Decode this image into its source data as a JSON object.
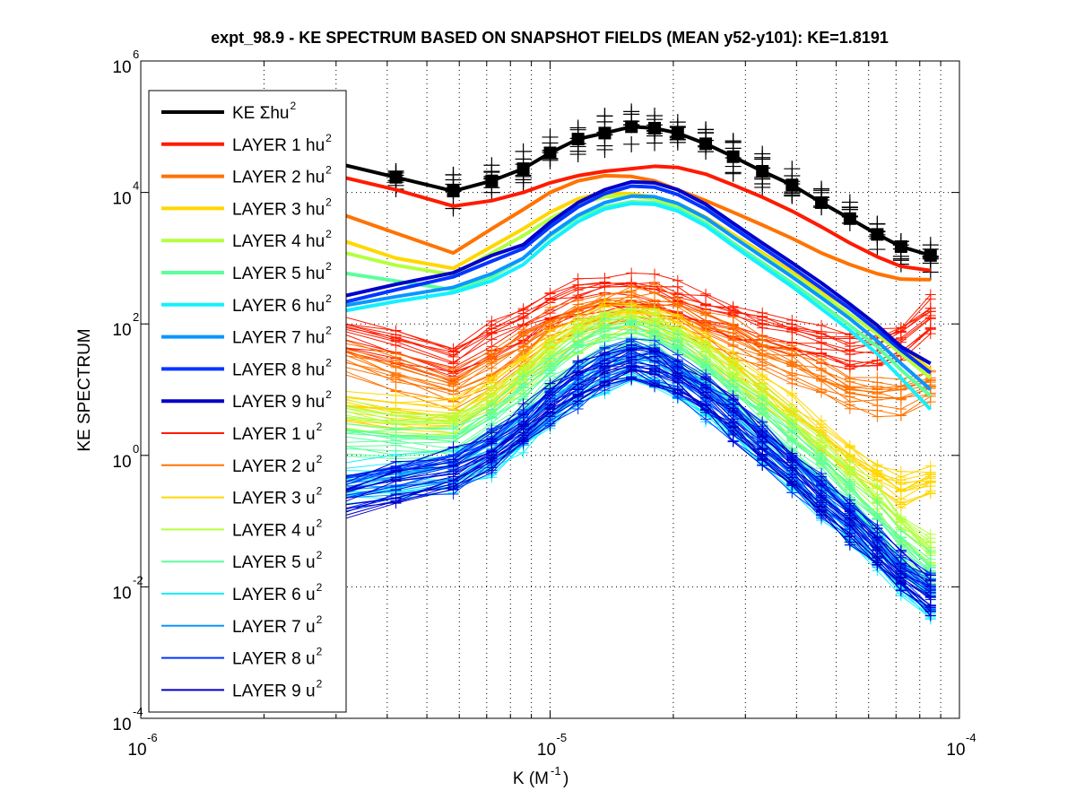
{
  "chart_data": {
    "type": "line",
    "title": "expt_98.9 - KE SPECTRUM BASED ON SNAPSHOT FIELDS (MEAN y52-y101): KE=1.8191",
    "xlabel": "K  (M",
    "xlabel_sup": "-1",
    "xlabel_close": ")",
    "ylabel": "KE SPECTRUM",
    "xscale": "log",
    "yscale": "log",
    "xlim": [
      1e-06,
      0.0001
    ],
    "ylim": [
      0.0001,
      1000000.0
    ],
    "grid": true,
    "legend_position": "top-left",
    "x_ticks": [
      {
        "base": "10",
        "exp": "-6",
        "value": 1e-06
      },
      {
        "base": "10",
        "exp": "-5",
        "value": 1e-05
      },
      {
        "base": "10",
        "exp": "-4",
        "value": 0.0001
      }
    ],
    "y_ticks": [
      {
        "base": "10",
        "exp": "-4",
        "value": 0.0001
      },
      {
        "base": "10",
        "exp": "-2",
        "value": 0.01
      },
      {
        "base": "10",
        "exp": "0",
        "value": 1
      },
      {
        "base": "10",
        "exp": "2",
        "value": 100
      },
      {
        "base": "10",
        "exp": "4",
        "value": 10000
      },
      {
        "base": "10",
        "exp": "6",
        "value": 1000000
      }
    ],
    "legend": [
      {
        "label": "KE Σhu",
        "sup": "2",
        "color": "#000000",
        "thick": true
      },
      {
        "label": "LAYER 1 hu",
        "sup": "2",
        "color": "#ff1a00",
        "thick": true
      },
      {
        "label": "LAYER 2 hu",
        "sup": "2",
        "color": "#ff7300",
        "thick": true
      },
      {
        "label": "LAYER 3 hu",
        "sup": "2",
        "color": "#ffd700",
        "thick": true
      },
      {
        "label": "LAYER 4 hu",
        "sup": "2",
        "color": "#b4ff40",
        "thick": true
      },
      {
        "label": "LAYER 5 hu",
        "sup": "2",
        "color": "#5cff9c",
        "thick": true
      },
      {
        "label": "LAYER 6 hu",
        "sup": "2",
        "color": "#14f0ff",
        "thick": true
      },
      {
        "label": "LAYER 7 hu",
        "sup": "2",
        "color": "#0a96ff",
        "thick": true
      },
      {
        "label": "LAYER 8 hu",
        "sup": "2",
        "color": "#0036ff",
        "thick": true
      },
      {
        "label": "LAYER 9 hu",
        "sup": "2",
        "color": "#0000c8",
        "thick": true
      },
      {
        "label": "LAYER 1 u",
        "sup": "2",
        "color": "#ff1a00",
        "thick": false
      },
      {
        "label": "LAYER 2 u",
        "sup": "2",
        "color": "#ff7300",
        "thick": false
      },
      {
        "label": "LAYER 3 u",
        "sup": "2",
        "color": "#ffd700",
        "thick": false
      },
      {
        "label": "LAYER 4 u",
        "sup": "2",
        "color": "#b4ff40",
        "thick": false
      },
      {
        "label": "LAYER 5 u",
        "sup": "2",
        "color": "#5cff9c",
        "thick": false
      },
      {
        "label": "LAYER 6 u",
        "sup": "2",
        "color": "#14f0ff",
        "thick": false
      },
      {
        "label": "LAYER 7 u",
        "sup": "2",
        "color": "#0a96ff",
        "thick": false
      },
      {
        "label": "LAYER 8 u",
        "sup": "2",
        "color": "#0036ff",
        "thick": false
      },
      {
        "label": "LAYER 9 u",
        "sup": "2",
        "color": "#0000c8",
        "thick": false
      }
    ],
    "x": [
      3e-06,
      4.2e-06,
      5.8e-06,
      7.2e-06,
      8.6e-06,
      1e-05,
      1.17e-05,
      1.36e-05,
      1.58e-05,
      1.8e-05,
      2.05e-05,
      2.4e-05,
      2.8e-05,
      3.3e-05,
      3.9e-05,
      4.6e-05,
      5.4e-05,
      6.3e-05,
      7.2e-05,
      8.5e-05
    ],
    "series": [
      {
        "name": "KE Σhu2",
        "color": "#000000",
        "width": 4,
        "markers": "+",
        "values": [
          28000,
          17000,
          10500,
          15000,
          23000,
          40000,
          65000,
          80000,
          100000,
          95000,
          80000,
          55000,
          35000,
          21000,
          13000,
          7000,
          4000,
          2300,
          1500,
          1100
        ]
      },
      {
        "name": "LAYER 1 hu2",
        "color": "#ff1a00",
        "width": 4,
        "values": [
          18000,
          11000,
          6200,
          7500,
          10000,
          14000,
          18000,
          21000,
          23000,
          25000,
          24000,
          19000,
          13000,
          8500,
          5200,
          3000,
          1700,
          1050,
          750,
          650
        ]
      },
      {
        "name": "LAYER 2 hu2",
        "color": "#ff7300",
        "width": 4,
        "values": [
          5000,
          2400,
          1200,
          2800,
          5500,
          10000,
          15000,
          18000,
          17500,
          15000,
          11000,
          7500,
          5000,
          3200,
          2000,
          1200,
          800,
          580,
          480,
          470
        ]
      },
      {
        "name": "LAYER 3 hu2",
        "color": "#ffd700",
        "width": 4,
        "values": [
          2000,
          1000,
          700,
          1500,
          2800,
          5000,
          8000,
          10000,
          9500,
          8500,
          6800,
          4200,
          2300,
          1200,
          620,
          320,
          170,
          90,
          45,
          20
        ]
      },
      {
        "name": "LAYER 4 hu2",
        "color": "#b4ff40",
        "width": 4,
        "values": [
          1300,
          780,
          560,
          1200,
          2200,
          4000,
          6600,
          8600,
          8800,
          8000,
          6400,
          4000,
          2150,
          1100,
          560,
          280,
          140,
          70,
          35,
          15
        ]
      },
      {
        "name": "LAYER 5 hu2",
        "color": "#5cff9c",
        "width": 4,
        "values": [
          620,
          450,
          330,
          520,
          1000,
          2200,
          4200,
          6000,
          7200,
          7000,
          5600,
          3400,
          1700,
          850,
          420,
          200,
          95,
          45,
          20,
          8
        ]
      },
      {
        "name": "LAYER 6 hu2",
        "color": "#14f0ff",
        "width": 4,
        "values": [
          150,
          220,
          300,
          450,
          800,
          1800,
          3600,
          5600,
          6800,
          6600,
          5200,
          3100,
          1550,
          760,
          370,
          170,
          80,
          35,
          15,
          5
        ]
      },
      {
        "name": "LAYER 7 hu2",
        "color": "#0a96ff",
        "width": 4,
        "values": [
          180,
          260,
          360,
          580,
          1000,
          2300,
          4500,
          7000,
          8800,
          8600,
          6800,
          4100,
          2100,
          1050,
          520,
          250,
          120,
          55,
          25,
          10
        ]
      },
      {
        "name": "LAYER 8 hu2",
        "color": "#0036ff",
        "width": 4,
        "values": [
          200,
          330,
          520,
          900,
          1400,
          3000,
          6000,
          9600,
          12500,
          12000,
          9300,
          5600,
          2900,
          1450,
          720,
          350,
          170,
          80,
          40,
          18
        ]
      },
      {
        "name": "LAYER 9 hu2",
        "color": "#0000c8",
        "width": 4,
        "values": [
          250,
          400,
          600,
          1100,
          1600,
          3500,
          7000,
          11000,
          14500,
          14000,
          11000,
          6600,
          3400,
          1700,
          850,
          420,
          200,
          95,
          45,
          25
        ]
      },
      {
        "name": "LAYER 1 u2",
        "color": "#ff1a00",
        "width": 1,
        "markers": "+",
        "band_spread": 2.2,
        "values": [
          90,
          55,
          28,
          60,
          110,
          190,
          260,
          320,
          340,
          300,
          230,
          170,
          120,
          90,
          70,
          55,
          45,
          45,
          60,
          150
        ]
      },
      {
        "name": "LAYER 2 u2",
        "color": "#ff7300",
        "width": 1,
        "markers": "+",
        "band_spread": 2.2,
        "values": [
          35,
          18,
          10,
          22,
          45,
          90,
          140,
          190,
          210,
          190,
          140,
          95,
          60,
          38,
          25,
          15,
          10,
          8,
          8,
          12
        ]
      },
      {
        "name": "LAYER 3 u2",
        "color": "#ffd700",
        "width": 1,
        "markers": "+",
        "band_spread": 2.0,
        "values": [
          6,
          4.5,
          4,
          9,
          20,
          45,
          80,
          120,
          140,
          120,
          80,
          45,
          22,
          10,
          4.5,
          2,
          0.9,
          0.45,
          0.3,
          0.4
        ]
      },
      {
        "name": "LAYER 4 u2",
        "color": "#b4ff40",
        "width": 1,
        "markers": "+",
        "band_spread": 2.0,
        "values": [
          4,
          3,
          2.8,
          6,
          14,
          32,
          60,
          95,
          110,
          90,
          60,
          32,
          15,
          6.5,
          2.8,
          1.2,
          0.5,
          0.2,
          0.08,
          0.035
        ]
      },
      {
        "name": "LAYER 5 u2",
        "color": "#5cff9c",
        "width": 1,
        "markers": "+",
        "band_spread": 2.0,
        "values": [
          1.8,
          1.6,
          1.6,
          3.5,
          8,
          19,
          38,
          60,
          70,
          58,
          38,
          20,
          9,
          4,
          1.6,
          0.65,
          0.26,
          0.1,
          0.04,
          0.018
        ]
      },
      {
        "name": "LAYER 6 u2",
        "color": "#14f0ff",
        "width": 1,
        "markers": "+",
        "band_spread": 2.4,
        "values": [
          0.35,
          0.45,
          0.55,
          1.0,
          2.2,
          5,
          10,
          18,
          24,
          20,
          13,
          7,
          3.2,
          1.3,
          0.55,
          0.22,
          0.09,
          0.035,
          0.014,
          0.006
        ]
      },
      {
        "name": "LAYER 7 u2",
        "color": "#0a96ff",
        "width": 1,
        "markers": "+",
        "band_spread": 2.4,
        "values": [
          0.3,
          0.4,
          0.6,
          1.1,
          2.4,
          5.5,
          11,
          20,
          26,
          22,
          14,
          7.5,
          3.4,
          1.4,
          0.58,
          0.23,
          0.09,
          0.035,
          0.014,
          0.007
        ]
      },
      {
        "name": "LAYER 8 u2",
        "color": "#0036ff",
        "width": 1,
        "markers": "+",
        "band_spread": 2.4,
        "values": [
          0.25,
          0.4,
          0.6,
          1.2,
          2.6,
          6,
          12,
          22,
          28,
          24,
          15,
          8,
          3.6,
          1.5,
          0.6,
          0.24,
          0.1,
          0.04,
          0.016,
          0.008
        ]
      },
      {
        "name": "LAYER 9 u2",
        "color": "#0000c8",
        "width": 1,
        "markers": "+",
        "band_spread": 2.4,
        "values": [
          0.2,
          0.35,
          0.55,
          1.1,
          2.5,
          6,
          12,
          21,
          27,
          23,
          14,
          7.5,
          3.4,
          1.4,
          0.56,
          0.22,
          0.09,
          0.035,
          0.015,
          0.007
        ]
      }
    ]
  }
}
